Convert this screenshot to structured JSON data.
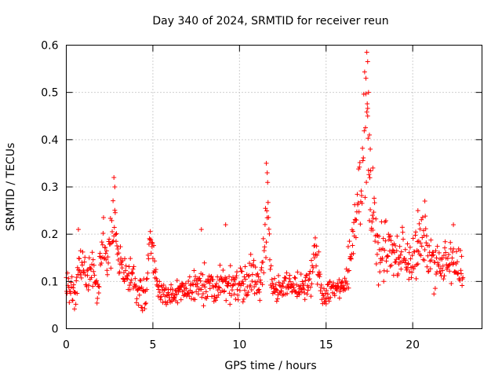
{
  "chart_data": {
    "type": "scatter",
    "title": "Day 340 of 2024, SRMTID for receiver reun",
    "xlabel": "GPS time / hours",
    "ylabel": "SRMTID / TECUs",
    "xlim": [
      0,
      24
    ],
    "ylim": [
      0,
      0.6
    ],
    "xticks": [
      0,
      5,
      10,
      15,
      20
    ],
    "xtick_labels": [
      "0",
      "5",
      "10",
      "15",
      "20"
    ],
    "yticks": [
      0,
      0.1,
      0.2,
      0.3,
      0.4,
      0.5,
      0.6
    ],
    "ytick_labels": [
      "0",
      "0.1",
      "0.2",
      "0.3",
      "0.4",
      "0.5",
      "0.6"
    ],
    "grid": true,
    "marker": "+",
    "marker_color": "#ff0000",
    "x_step_hours": 0.025,
    "series": [
      {
        "name": "SRMTID",
        "color": "#ff0000",
        "profile": [
          [
            0.0,
            0.09,
            0.02
          ],
          [
            0.3,
            0.08,
            0.03
          ],
          [
            0.5,
            0.06,
            0.02
          ],
          [
            0.7,
            0.15,
            0.03
          ],
          [
            0.9,
            0.13,
            0.03
          ],
          [
            1.2,
            0.11,
            0.03
          ],
          [
            1.5,
            0.14,
            0.03
          ],
          [
            1.8,
            0.06,
            0.03
          ],
          [
            2.1,
            0.2,
            0.03
          ],
          [
            2.4,
            0.12,
            0.04
          ],
          [
            2.7,
            0.25,
            0.05
          ],
          [
            3.0,
            0.15,
            0.04
          ],
          [
            3.4,
            0.11,
            0.02
          ],
          [
            3.8,
            0.11,
            0.02
          ],
          [
            4.2,
            0.08,
            0.03
          ],
          [
            4.6,
            0.06,
            0.03
          ],
          [
            4.8,
            0.19,
            0.02
          ],
          [
            5.0,
            0.16,
            0.03
          ],
          [
            5.3,
            0.08,
            0.02
          ],
          [
            6.0,
            0.07,
            0.02
          ],
          [
            7.0,
            0.08,
            0.02
          ],
          [
            7.8,
            0.1,
            0.03
          ],
          [
            8.5,
            0.08,
            0.02
          ],
          [
            9.2,
            0.1,
            0.03
          ],
          [
            10.0,
            0.09,
            0.03
          ],
          [
            10.6,
            0.12,
            0.03
          ],
          [
            11.2,
            0.08,
            0.03
          ],
          [
            11.6,
            0.27,
            0.06
          ],
          [
            11.8,
            0.13,
            0.03
          ],
          [
            12.0,
            0.08,
            0.02
          ],
          [
            13.0,
            0.09,
            0.02
          ],
          [
            14.0,
            0.09,
            0.02
          ],
          [
            14.4,
            0.16,
            0.04
          ],
          [
            14.8,
            0.07,
            0.02
          ],
          [
            15.5,
            0.09,
            0.02
          ],
          [
            16.0,
            0.08,
            0.02
          ],
          [
            16.4,
            0.14,
            0.05
          ],
          [
            16.7,
            0.26,
            0.05
          ],
          [
            17.0,
            0.3,
            0.06
          ],
          [
            17.3,
            0.47,
            0.1
          ],
          [
            17.6,
            0.25,
            0.06
          ],
          [
            18.0,
            0.16,
            0.04
          ],
          [
            18.5,
            0.17,
            0.04
          ],
          [
            19.0,
            0.15,
            0.04
          ],
          [
            19.5,
            0.16,
            0.04
          ],
          [
            20.0,
            0.14,
            0.04
          ],
          [
            20.6,
            0.19,
            0.04
          ],
          [
            21.0,
            0.15,
            0.04
          ],
          [
            21.5,
            0.13,
            0.03
          ],
          [
            22.0,
            0.14,
            0.04
          ],
          [
            22.5,
            0.13,
            0.03
          ],
          [
            22.9,
            0.13,
            0.03
          ]
        ],
        "spikes": [
          [
            2.75,
            0.32
          ],
          [
            2.8,
            0.3
          ],
          [
            11.55,
            0.35
          ],
          [
            11.6,
            0.33
          ],
          [
            17.35,
            0.585
          ],
          [
            17.4,
            0.565
          ],
          [
            17.3,
            0.53
          ],
          [
            17.45,
            0.5
          ],
          [
            17.4,
            0.45
          ],
          [
            17.5,
            0.41
          ],
          [
            17.55,
            0.38
          ],
          [
            17.7,
            0.34
          ],
          [
            20.3,
            0.25
          ],
          [
            20.7,
            0.27
          ],
          [
            22.35,
            0.22
          ],
          [
            9.2,
            0.22
          ],
          [
            7.8,
            0.21
          ],
          [
            0.7,
            0.21
          ]
        ]
      }
    ]
  }
}
